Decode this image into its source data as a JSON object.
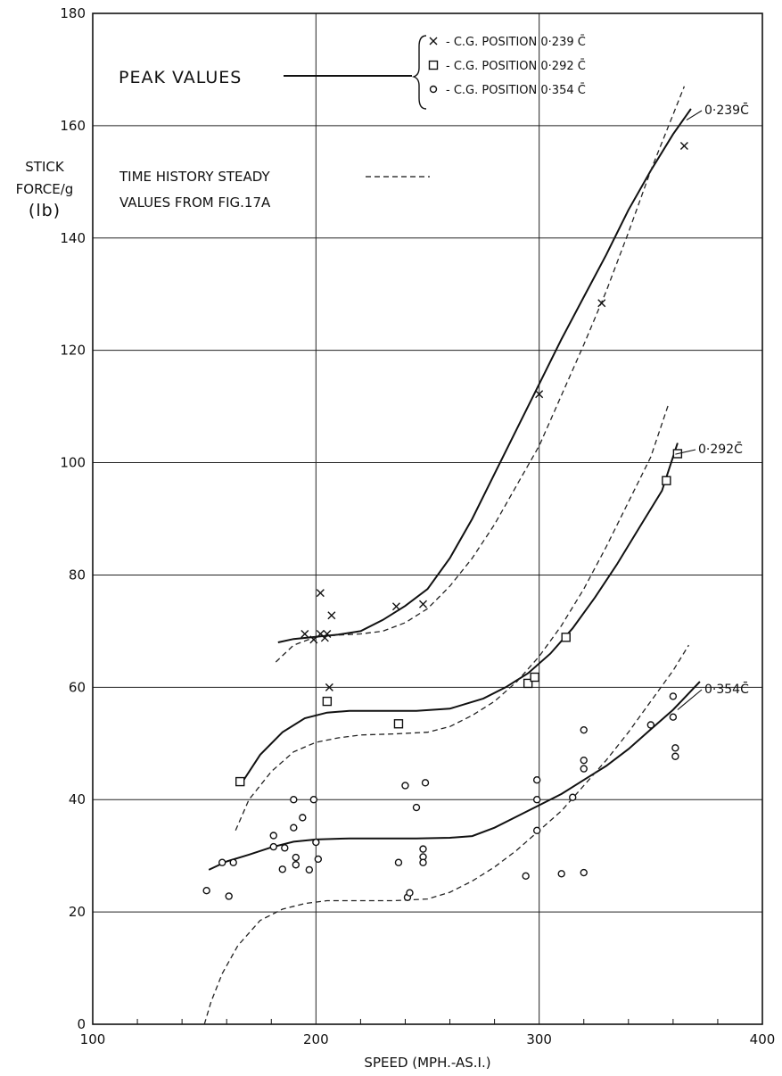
{
  "chart_data": {
    "type": "scatter",
    "xlabel": "SPEED (MPH.-AS.I.)",
    "ylabel_lines": [
      "STICK",
      "FORCE/g",
      "(lb)"
    ],
    "xlim": [
      100,
      400
    ],
    "ylim": [
      0,
      180
    ],
    "x_ticks": [
      "100",
      "200",
      "300",
      "400"
    ],
    "y_ticks": [
      "0",
      "20",
      "40",
      "60",
      "80",
      "100",
      "120",
      "140",
      "160",
      "180"
    ],
    "grid": true,
    "peak_label": "PEAK VALUES",
    "dashed_label_lines": [
      "TIME HISTORY STEADY",
      "VALUES FROM FIG.17A"
    ],
    "legend": [
      {
        "marker": "x",
        "text": "- C.G. POSITION  0·239 C̄"
      },
      {
        "marker": "square",
        "text": "- C.G. POSITION  0·292 C̄"
      },
      {
        "marker": "circle",
        "text": "- C.G. POSITION  0·354 C̄"
      }
    ],
    "series": [
      {
        "name": "0·239C̄",
        "marker": "x",
        "points": [
          [
            195,
            69.5
          ],
          [
            199,
            68.5
          ],
          [
            202,
            76.8
          ],
          [
            202,
            69.5
          ],
          [
            204,
            68.8
          ],
          [
            205,
            69.5
          ],
          [
            206,
            60
          ],
          [
            207,
            72.8
          ],
          [
            236,
            74.4
          ],
          [
            248,
            74.8
          ],
          [
            300,
            112.2
          ],
          [
            328,
            128.4
          ],
          [
            365,
            156.4
          ]
        ],
        "peak_curve": [
          [
            183,
            68
          ],
          [
            190,
            68.6
          ],
          [
            200,
            69
          ],
          [
            210,
            69.4
          ],
          [
            220,
            70
          ],
          [
            230,
            72
          ],
          [
            240,
            74.5
          ],
          [
            250,
            77.5
          ],
          [
            260,
            83
          ],
          [
            270,
            90
          ],
          [
            280,
            98
          ],
          [
            290,
            106
          ],
          [
            300,
            114
          ],
          [
            310,
            122
          ],
          [
            320,
            129.5
          ],
          [
            330,
            137
          ],
          [
            340,
            145
          ],
          [
            350,
            152
          ],
          [
            360,
            158.5
          ],
          [
            368,
            163
          ]
        ],
        "steady_curve": [
          [
            182,
            64.5
          ],
          [
            190,
            67.5
          ],
          [
            200,
            69
          ],
          [
            210,
            69.3
          ],
          [
            220,
            69.5
          ],
          [
            230,
            70
          ],
          [
            240,
            71.5
          ],
          [
            250,
            74
          ],
          [
            260,
            78
          ],
          [
            270,
            83
          ],
          [
            280,
            89
          ],
          [
            290,
            96
          ],
          [
            300,
            103
          ],
          [
            310,
            112
          ],
          [
            320,
            121
          ],
          [
            330,
            130.5
          ],
          [
            340,
            141
          ],
          [
            350,
            152
          ],
          [
            360,
            162
          ],
          [
            365,
            167
          ]
        ],
        "curve_label": "0·239C̄"
      },
      {
        "name": "0·292C̄",
        "marker": "square",
        "points": [
          [
            166,
            43.2
          ],
          [
            205,
            57.5
          ],
          [
            237,
            53.5
          ],
          [
            295,
            60.7
          ],
          [
            298,
            61.8
          ],
          [
            312,
            68.9
          ],
          [
            357,
            96.8
          ],
          [
            362,
            101.6
          ]
        ],
        "peak_curve": [
          [
            166,
            42.5
          ],
          [
            175,
            48
          ],
          [
            185,
            52
          ],
          [
            195,
            54.5
          ],
          [
            205,
            55.5
          ],
          [
            215,
            55.8
          ],
          [
            230,
            55.8
          ],
          [
            245,
            55.8
          ],
          [
            260,
            56.2
          ],
          [
            275,
            58
          ],
          [
            285,
            60
          ],
          [
            295,
            62.5
          ],
          [
            305,
            66
          ],
          [
            315,
            70.5
          ],
          [
            325,
            76
          ],
          [
            335,
            82
          ],
          [
            345,
            88.5
          ],
          [
            355,
            95
          ],
          [
            362,
            103.5
          ]
        ],
        "steady_curve": [
          [
            164,
            34.5
          ],
          [
            170,
            40
          ],
          [
            180,
            45
          ],
          [
            190,
            48.5
          ],
          [
            200,
            50.2
          ],
          [
            210,
            51
          ],
          [
            220,
            51.5
          ],
          [
            235,
            51.7
          ],
          [
            250,
            52
          ],
          [
            260,
            53
          ],
          [
            270,
            55
          ],
          [
            280,
            57.5
          ],
          [
            290,
            61
          ],
          [
            300,
            65.5
          ],
          [
            310,
            71
          ],
          [
            320,
            77.5
          ],
          [
            330,
            85
          ],
          [
            340,
            93
          ],
          [
            350,
            101
          ],
          [
            358,
            110.5
          ]
        ],
        "curve_label": "0·292C̄"
      },
      {
        "name": "0·354C̄",
        "marker": "circle",
        "points": [
          [
            151,
            23.8
          ],
          [
            158,
            28.8
          ],
          [
            161,
            22.8
          ],
          [
            163,
            28.8
          ],
          [
            181,
            33.6
          ],
          [
            181,
            31.6
          ],
          [
            185,
            27.6
          ],
          [
            186,
            31.4
          ],
          [
            190,
            40
          ],
          [
            190,
            35
          ],
          [
            191,
            29.7
          ],
          [
            191,
            28.4
          ],
          [
            194,
            36.8
          ],
          [
            197,
            27.5
          ],
          [
            199,
            40
          ],
          [
            200,
            32.4
          ],
          [
            201,
            29.4
          ],
          [
            237,
            28.8
          ],
          [
            240,
            42.5
          ],
          [
            241,
            22.6
          ],
          [
            242,
            23.4
          ],
          [
            245,
            38.6
          ],
          [
            248,
            31.2
          ],
          [
            248,
            29.8
          ],
          [
            248,
            28.8
          ],
          [
            249,
            43
          ],
          [
            294,
            26.4
          ],
          [
            299,
            40
          ],
          [
            299,
            34.5
          ],
          [
            299,
            43.5
          ],
          [
            310,
            26.8
          ],
          [
            315,
            40.4
          ],
          [
            320,
            52.4
          ],
          [
            320,
            47
          ],
          [
            320,
            45.5
          ],
          [
            320,
            27
          ],
          [
            350,
            53.3
          ],
          [
            360,
            58.4
          ],
          [
            360,
            54.7
          ],
          [
            361,
            49.2
          ],
          [
            361,
            47.7
          ]
        ],
        "peak_curve": [
          [
            152,
            27.5
          ],
          [
            160,
            29
          ],
          [
            170,
            30.2
          ],
          [
            180,
            31.5
          ],
          [
            190,
            32.5
          ],
          [
            200,
            32.9
          ],
          [
            215,
            33.1
          ],
          [
            230,
            33.1
          ],
          [
            245,
            33.1
          ],
          [
            260,
            33.2
          ],
          [
            270,
            33.5
          ],
          [
            280,
            35
          ],
          [
            290,
            37
          ],
          [
            300,
            39
          ],
          [
            310,
            41
          ],
          [
            320,
            43.5
          ],
          [
            330,
            46
          ],
          [
            340,
            49
          ],
          [
            350,
            52.5
          ],
          [
            360,
            56
          ],
          [
            372,
            61
          ]
        ],
        "steady_curve": [
          [
            150,
            0
          ],
          [
            153,
            4
          ],
          [
            158,
            9
          ],
          [
            165,
            14
          ],
          [
            175,
            18.5
          ],
          [
            185,
            20.5
          ],
          [
            195,
            21.5
          ],
          [
            205,
            22
          ],
          [
            220,
            22
          ],
          [
            235,
            22
          ],
          [
            250,
            22.3
          ],
          [
            260,
            23.5
          ],
          [
            270,
            25.5
          ],
          [
            280,
            28
          ],
          [
            290,
            31
          ],
          [
            300,
            34.5
          ],
          [
            310,
            38
          ],
          [
            320,
            42.5
          ],
          [
            330,
            47
          ],
          [
            340,
            52
          ],
          [
            350,
            57.5
          ],
          [
            360,
            63
          ],
          [
            367,
            67.5
          ]
        ],
        "curve_label": "0·354C̄"
      }
    ]
  }
}
